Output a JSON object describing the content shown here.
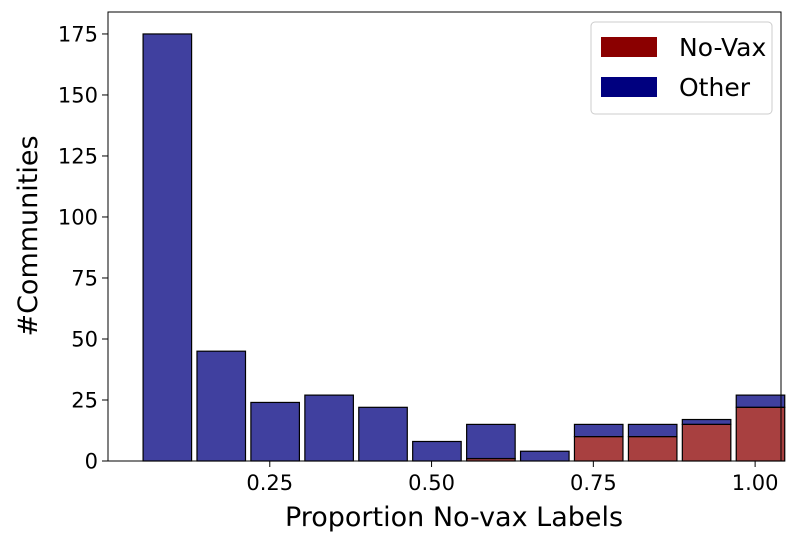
{
  "chart_data": {
    "type": "bar",
    "stacked": true,
    "xlabel": "Proportion No-vax Labels",
    "ylabel": "#Communities",
    "xlim": [
      0.0,
      1.04
    ],
    "ylim": [
      0,
      184
    ],
    "x_ticks": [
      0.25,
      0.5,
      0.75,
      1.0
    ],
    "x_tick_labels": [
      "0.25",
      "0.50",
      "0.75",
      "1.00"
    ],
    "y_ticks": [
      0,
      25,
      50,
      75,
      100,
      125,
      150,
      175
    ],
    "y_tick_labels": [
      "0",
      "25",
      "50",
      "75",
      "100",
      "125",
      "150",
      "175"
    ],
    "bin_width": 0.0833,
    "bin_centers": [
      0.0917,
      0.175,
      0.2583,
      0.3417,
      0.425,
      0.5083,
      0.5917,
      0.675,
      0.7583,
      0.8417,
      0.925,
      1.0083
    ],
    "series": [
      {
        "name": "No-Vax",
        "color": "#8b0000",
        "values": [
          0,
          0,
          0,
          0,
          0,
          0,
          1,
          0,
          10,
          10,
          15,
          22
        ]
      },
      {
        "name": "Other",
        "color": "#00007f",
        "values": [
          175,
          45,
          24,
          27,
          22,
          8,
          14,
          4,
          5,
          5,
          2,
          5
        ]
      }
    ],
    "bar_alpha": 0.75,
    "grid": false,
    "legend_position": "top-right"
  }
}
